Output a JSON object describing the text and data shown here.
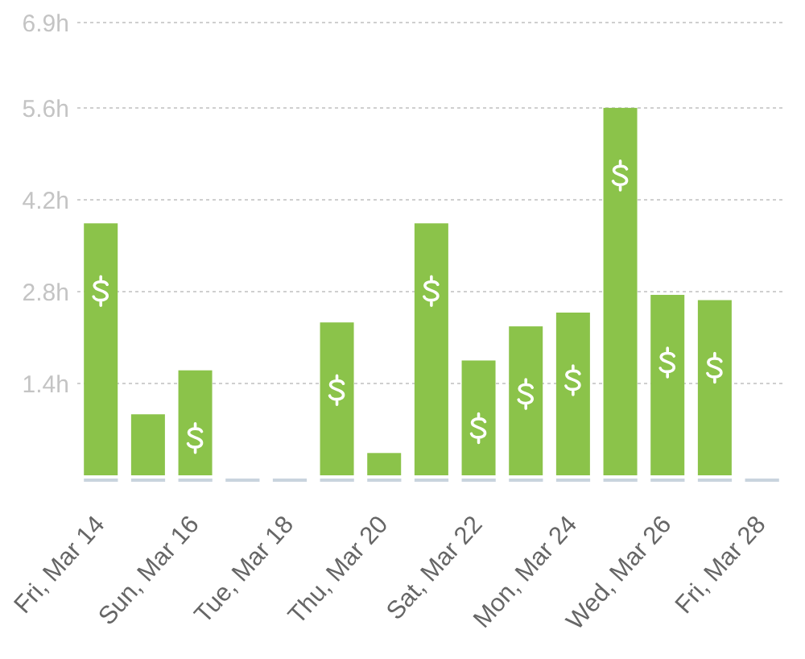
{
  "chart_data": {
    "type": "bar",
    "categories": [
      "Fri, Mar 14",
      null,
      "Sun, Mar 16",
      null,
      "Tue, Mar 18",
      null,
      "Thu, Mar 20",
      null,
      "Sat, Mar 22",
      null,
      "Mon, Mar 24",
      null,
      "Wed, Mar 26",
      null,
      "Fri, Mar 28"
    ],
    "values": [
      3.84,
      0.93,
      1.6,
      0,
      0,
      2.33,
      0.34,
      3.84,
      1.75,
      2.27,
      2.48,
      5.6,
      2.75,
      2.67,
      0
    ],
    "color": "#8bc34a",
    "ylim": [
      0,
      6.9
    ],
    "yticks": [
      {
        "value": 1.4,
        "label": "1.4h"
      },
      {
        "value": 2.8,
        "label": "2.8h"
      },
      {
        "value": 4.2,
        "label": "4.2h"
      },
      {
        "value": 5.6,
        "label": "5.6h"
      },
      {
        "value": 6.9,
        "label": "6.9h"
      }
    ],
    "grid": "y"
  }
}
